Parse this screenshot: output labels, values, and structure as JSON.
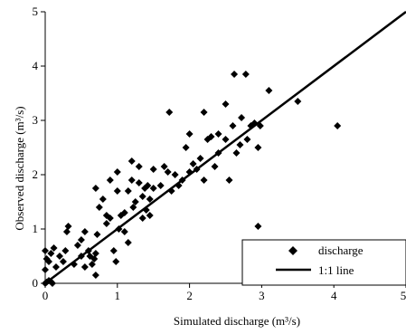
{
  "chart_data": {
    "type": "scatter",
    "title": "",
    "xlabel": "Simulated discharge (m³/s)",
    "ylabel": "Observed discharge (m³/s)",
    "xlim": [
      0,
      5
    ],
    "ylim": [
      0,
      5
    ],
    "x_ticks": [
      "0",
      "1",
      "2",
      "3",
      "4",
      "5"
    ],
    "y_ticks": [
      "0",
      "1",
      "2",
      "3",
      "4",
      "5"
    ],
    "grid": false,
    "legend": {
      "placement": "bottom-right",
      "entries": [
        {
          "label": "discharge",
          "marker": "diamond",
          "color": "#000000"
        },
        {
          "label": "1:1 line",
          "marker": "line",
          "color": "#000000"
        }
      ]
    },
    "series": [
      {
        "name": "discharge",
        "points": [
          [
            0.0,
            0.0
          ],
          [
            0.02,
            0.02
          ],
          [
            0.05,
            0.05
          ],
          [
            0.08,
            0.03
          ],
          [
            0.1,
            0.0
          ],
          [
            0.0,
            0.25
          ],
          [
            0.05,
            0.4
          ],
          [
            0.08,
            0.55
          ],
          [
            0.0,
            0.6
          ],
          [
            0.12,
            0.65
          ],
          [
            0.02,
            0.45
          ],
          [
            0.15,
            0.3
          ],
          [
            0.2,
            0.5
          ],
          [
            0.25,
            0.4
          ],
          [
            0.28,
            0.6
          ],
          [
            0.3,
            0.95
          ],
          [
            0.32,
            1.05
          ],
          [
            0.4,
            0.35
          ],
          [
            0.45,
            0.7
          ],
          [
            0.5,
            0.8
          ],
          [
            0.5,
            0.5
          ],
          [
            0.55,
            0.3
          ],
          [
            0.55,
            0.95
          ],
          [
            0.6,
            0.6
          ],
          [
            0.62,
            0.5
          ],
          [
            0.65,
            0.35
          ],
          [
            0.68,
            0.45
          ],
          [
            0.7,
            0.15
          ],
          [
            0.7,
            0.55
          ],
          [
            0.72,
            0.9
          ],
          [
            0.75,
            1.4
          ],
          [
            0.7,
            1.75
          ],
          [
            0.8,
            1.55
          ],
          [
            0.85,
            1.25
          ],
          [
            0.85,
            1.1
          ],
          [
            0.9,
            1.2
          ],
          [
            0.9,
            1.9
          ],
          [
            0.95,
            0.6
          ],
          [
            0.98,
            0.4
          ],
          [
            1.0,
            1.7
          ],
          [
            1.0,
            2.05
          ],
          [
            1.02,
            1.0
          ],
          [
            1.05,
            1.25
          ],
          [
            1.1,
            0.95
          ],
          [
            1.1,
            1.3
          ],
          [
            1.15,
            0.75
          ],
          [
            1.15,
            1.7
          ],
          [
            1.2,
            1.9
          ],
          [
            1.2,
            2.25
          ],
          [
            1.22,
            1.4
          ],
          [
            1.25,
            1.5
          ],
          [
            1.3,
            1.85
          ],
          [
            1.3,
            2.15
          ],
          [
            1.35,
            1.2
          ],
          [
            1.35,
            1.6
          ],
          [
            1.38,
            1.75
          ],
          [
            1.4,
            1.35
          ],
          [
            1.42,
            1.8
          ],
          [
            1.45,
            1.25
          ],
          [
            1.45,
            1.55
          ],
          [
            1.5,
            2.1
          ],
          [
            1.5,
            1.75
          ],
          [
            1.6,
            1.8
          ],
          [
            1.65,
            2.15
          ],
          [
            1.7,
            2.05
          ],
          [
            1.72,
            3.15
          ],
          [
            1.75,
            1.7
          ],
          [
            1.8,
            2.0
          ],
          [
            1.85,
            1.8
          ],
          [
            1.9,
            1.9
          ],
          [
            1.95,
            2.5
          ],
          [
            2.0,
            2.05
          ],
          [
            2.0,
            2.75
          ],
          [
            2.05,
            2.2
          ],
          [
            2.1,
            2.1
          ],
          [
            2.15,
            2.3
          ],
          [
            2.2,
            1.9
          ],
          [
            2.2,
            3.15
          ],
          [
            2.25,
            2.65
          ],
          [
            2.3,
            2.7
          ],
          [
            2.35,
            2.15
          ],
          [
            2.4,
            2.4
          ],
          [
            2.4,
            2.75
          ],
          [
            2.5,
            3.3
          ],
          [
            2.5,
            2.65
          ],
          [
            2.55,
            1.9
          ],
          [
            2.6,
            2.9
          ],
          [
            2.62,
            3.85
          ],
          [
            2.65,
            2.4
          ],
          [
            2.7,
            2.55
          ],
          [
            2.72,
            3.05
          ],
          [
            2.78,
            3.85
          ],
          [
            2.8,
            2.65
          ],
          [
            2.85,
            2.9
          ],
          [
            2.9,
            2.95
          ],
          [
            2.95,
            2.5
          ],
          [
            2.95,
            1.05
          ],
          [
            2.98,
            2.9
          ],
          [
            3.1,
            3.55
          ],
          [
            3.5,
            3.35
          ],
          [
            4.05,
            2.9
          ]
        ]
      },
      {
        "name": "1:1 line",
        "line": [
          [
            0,
            0
          ],
          [
            5,
            5
          ]
        ]
      }
    ]
  }
}
